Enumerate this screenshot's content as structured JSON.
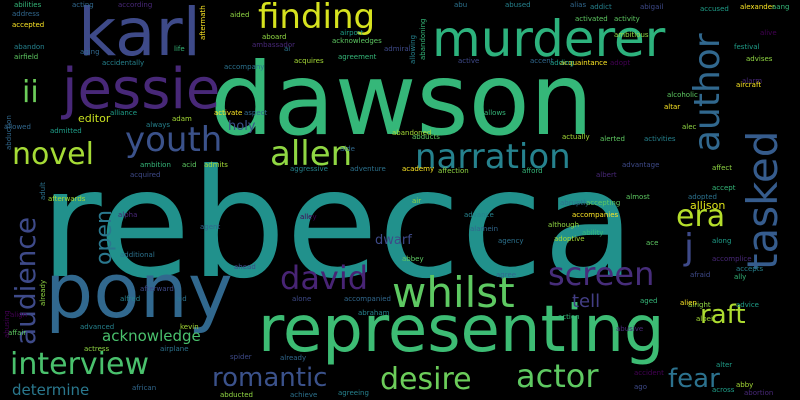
{
  "words": {
    "rebecca": "rebecca",
    "dawson": "dawson",
    "pony": "pony",
    "representing": "representing",
    "jessie": "jessie",
    "karl": "karl",
    "murderer": "murderer",
    "whilst": "whilst",
    "finding": "finding",
    "allen": "allen",
    "narration": "narration",
    "youth": "youth",
    "screen": "screen",
    "david": "david",
    "desire": "desire",
    "actor": "actor",
    "interview": "interview",
    "romantic": "romantic",
    "novel": "novel",
    "fear": "fear",
    "raft": "raft",
    "era": "era",
    "ii": "ii",
    "j": "j",
    "author": "author",
    "tasked": "tasked",
    "audience": "audience",
    "open": "open",
    "acknowledge": "acknowledge",
    "determine": "determine",
    "tell": "tell",
    "holy": "holy",
    "dwarf": "dwarf",
    "editor": "editor",
    "allison": "allison"
  },
  "small_words": [
    "abilities",
    "acting",
    "according",
    "adult",
    "aided",
    "addict",
    "abigail",
    "accused",
    "alexander",
    "aang",
    "address",
    "alive",
    "ambassador",
    "aboard",
    "acknowledges",
    "abu",
    "abused",
    "alias",
    "aftermath",
    "allowing",
    "accepted",
    "aging",
    "life",
    "ai",
    "admiral",
    "airport",
    "accidentally",
    "activated",
    "acquaintance",
    "activity",
    "abandon",
    "accompany",
    "acquires",
    "agreement",
    "abandoning",
    "active",
    "accent",
    "adding",
    "adopt",
    "ambitious",
    "airfield",
    "activate",
    "adam",
    "always",
    "aspect",
    "allows",
    "abruptly",
    "alcoholic",
    "aircraft",
    "advises",
    "allowed",
    "admitted",
    "ambition",
    "acid",
    "admits",
    "aggressive",
    "adventure",
    "academy",
    "affection",
    "afford",
    "actually",
    "alerted",
    "advantage",
    "activities",
    "affect",
    "alarm",
    "festival",
    "accepting",
    "albert",
    "alliance",
    "abduction",
    "accept",
    "adopted",
    "afterwards",
    "acquired",
    "alpha",
    "agent",
    "alley",
    "air",
    "almost",
    "advance",
    "alamein",
    "agency",
    "accompanies",
    "ability",
    "adoptive",
    "although",
    "ace",
    "along",
    "accomplice",
    "afraid",
    "accepts",
    "ally",
    "alfred",
    "afterward",
    "additional",
    "ahead",
    "abbey",
    "agree",
    "action",
    "abusive",
    "alright",
    "advice",
    "abraham",
    "aid",
    "alone",
    "accompanied",
    "aged",
    "alien",
    "albeit",
    "align",
    "affair",
    "advanced",
    "kevin",
    "actress",
    "airplane",
    "spider",
    "already",
    "alter",
    "accident",
    "abby",
    "abortion",
    "african",
    "abducted",
    "achieve",
    "agreeing",
    "ago",
    "across",
    "abandoned",
    "abducts",
    "altar",
    "alec",
    "aide",
    "adult",
    "already",
    "abusing"
  ]
}
